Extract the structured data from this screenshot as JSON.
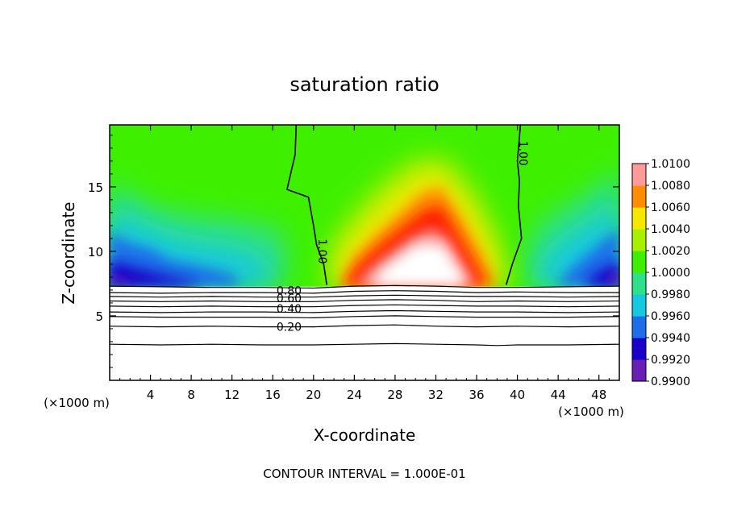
{
  "chart_data": {
    "type": "heatmap",
    "title": "saturation ratio",
    "xlabel": "X-coordinate",
    "ylabel": "Z-coordinate",
    "x_unit_left": "(×1000 m)",
    "x_unit_right": "(×1000 m)",
    "xlim": [
      0,
      50
    ],
    "ylim": [
      0,
      19.8
    ],
    "xticks": [
      4,
      8,
      12,
      16,
      20,
      24,
      28,
      32,
      36,
      40,
      44,
      48
    ],
    "xtick_labels": [
      "4",
      "8",
      "12",
      "16",
      "20",
      "24",
      "28",
      "32",
      "36",
      "40",
      "44",
      "48"
    ],
    "yticks": [
      5,
      10,
      15
    ],
    "ytick_labels": [
      "5",
      "10",
      "15"
    ],
    "footer": "CONTOUR INTERVAL = 1.000E-01",
    "colorbar": {
      "levels": [
        0.99,
        0.992,
        0.994,
        0.996,
        0.998,
        1.0,
        1.002,
        1.004,
        1.006,
        1.008,
        1.01
      ],
      "labels": [
        "0.9900",
        "0.9920",
        "0.9940",
        "0.9960",
        "0.9980",
        "1.0000",
        "1.0020",
        "1.0040",
        "1.0060",
        "1.0080",
        "1.0100"
      ],
      "colors": [
        "#6a1fb4",
        "#1a00c8",
        "#1e6ee8",
        "#16c8e0",
        "#2ee08a",
        "#3ef000",
        "#a8f000",
        "#f5e800",
        "#ff8c00",
        "#ff1a00",
        "#ff9a9a"
      ]
    },
    "contour_labels": [
      {
        "text": "1.00",
        "x": 20.8,
        "z": 10.0,
        "rotate": 90
      },
      {
        "text": "1.00",
        "x": 40.5,
        "z": 17.6,
        "rotate": 90
      },
      {
        "text": "0.80",
        "x": 17.6,
        "z": 6.9,
        "rotate": 0
      },
      {
        "text": "0.60",
        "x": 17.6,
        "z": 6.3,
        "rotate": 0
      },
      {
        "text": "0.40",
        "x": 17.6,
        "z": 5.5,
        "rotate": 0
      },
      {
        "text": "0.20",
        "x": 17.6,
        "z": 4.1,
        "rotate": 0
      }
    ],
    "contour_lines": [
      {
        "level": "0.90",
        "points": [
          [
            0,
            7.3
          ],
          [
            5,
            7.25
          ],
          [
            10,
            7.2
          ],
          [
            15,
            7.2
          ],
          [
            20,
            7.15
          ],
          [
            24,
            7.3
          ],
          [
            28,
            7.35
          ],
          [
            32,
            7.3
          ],
          [
            36,
            7.2
          ],
          [
            40,
            7.2
          ],
          [
            45,
            7.25
          ],
          [
            50,
            7.3
          ]
        ]
      },
      {
        "level": "0.80",
        "points": [
          [
            0,
            6.8
          ],
          [
            5,
            6.75
          ],
          [
            10,
            6.8
          ],
          [
            15,
            6.8
          ],
          [
            20,
            6.75
          ],
          [
            24,
            6.9
          ],
          [
            28,
            6.95
          ],
          [
            32,
            6.9
          ],
          [
            36,
            6.8
          ],
          [
            40,
            6.85
          ],
          [
            45,
            6.8
          ],
          [
            50,
            6.8
          ]
        ]
      },
      {
        "level": "0.70",
        "points": [
          [
            0,
            6.5
          ],
          [
            5,
            6.45
          ],
          [
            10,
            6.5
          ],
          [
            15,
            6.45
          ],
          [
            20,
            6.45
          ],
          [
            24,
            6.55
          ],
          [
            28,
            6.6
          ],
          [
            32,
            6.55
          ],
          [
            36,
            6.5
          ],
          [
            40,
            6.5
          ],
          [
            45,
            6.45
          ],
          [
            50,
            6.5
          ]
        ]
      },
      {
        "level": "0.60",
        "points": [
          [
            0,
            6.15
          ],
          [
            5,
            6.1
          ],
          [
            10,
            6.15
          ],
          [
            15,
            6.1
          ],
          [
            20,
            6.1
          ],
          [
            24,
            6.2
          ],
          [
            28,
            6.25
          ],
          [
            32,
            6.2
          ],
          [
            36,
            6.1
          ],
          [
            40,
            6.15
          ],
          [
            45,
            6.1
          ],
          [
            50,
            6.15
          ]
        ]
      },
      {
        "level": "0.50",
        "points": [
          [
            0,
            5.75
          ],
          [
            5,
            5.7
          ],
          [
            10,
            5.75
          ],
          [
            15,
            5.7
          ],
          [
            20,
            5.7
          ],
          [
            24,
            5.8
          ],
          [
            28,
            5.85
          ],
          [
            32,
            5.8
          ],
          [
            36,
            5.75
          ],
          [
            40,
            5.75
          ],
          [
            45,
            5.7
          ],
          [
            50,
            5.75
          ]
        ]
      },
      {
        "level": "0.40",
        "points": [
          [
            0,
            5.3
          ],
          [
            5,
            5.25
          ],
          [
            10,
            5.3
          ],
          [
            15,
            5.3
          ],
          [
            20,
            5.25
          ],
          [
            24,
            5.35
          ],
          [
            28,
            5.4
          ],
          [
            32,
            5.35
          ],
          [
            36,
            5.3
          ],
          [
            40,
            5.3
          ],
          [
            45,
            5.25
          ],
          [
            50,
            5.3
          ]
        ]
      },
      {
        "level": "0.30",
        "points": [
          [
            0,
            4.95
          ],
          [
            5,
            4.9
          ],
          [
            10,
            4.9
          ],
          [
            15,
            4.9
          ],
          [
            20,
            4.85
          ],
          [
            24,
            4.95
          ],
          [
            28,
            5.0
          ],
          [
            32,
            4.95
          ],
          [
            36,
            4.9
          ],
          [
            40,
            4.9
          ],
          [
            45,
            4.9
          ],
          [
            50,
            4.95
          ]
        ]
      },
      {
        "level": "0.20",
        "points": [
          [
            0,
            4.2
          ],
          [
            5,
            4.15
          ],
          [
            10,
            4.2
          ],
          [
            15,
            4.15
          ],
          [
            20,
            4.15
          ],
          [
            24,
            4.25
          ],
          [
            28,
            4.3
          ],
          [
            32,
            4.2
          ],
          [
            36,
            4.15
          ],
          [
            40,
            4.2
          ],
          [
            45,
            4.15
          ],
          [
            50,
            4.2
          ]
        ]
      },
      {
        "level": "0.10",
        "points": [
          [
            0,
            2.8
          ],
          [
            5,
            2.75
          ],
          [
            10,
            2.8
          ],
          [
            15,
            2.75
          ],
          [
            20,
            2.75
          ],
          [
            24,
            2.8
          ],
          [
            28,
            2.85
          ],
          [
            32,
            2.8
          ],
          [
            36,
            2.75
          ],
          [
            38,
            2.7
          ],
          [
            40,
            2.75
          ],
          [
            45,
            2.75
          ],
          [
            50,
            2.8
          ]
        ]
      },
      {
        "level": "1.00",
        "points": [
          [
            18.3,
            19.8
          ],
          [
            18.2,
            17.5
          ],
          [
            17.4,
            14.8
          ],
          [
            19.5,
            14.2
          ],
          [
            20.0,
            12.0
          ],
          [
            20.3,
            10.5
          ],
          [
            21.0,
            9.0
          ],
          [
            21.3,
            7.4
          ]
        ]
      },
      {
        "level": "1.00",
        "points": [
          [
            40.3,
            19.8
          ],
          [
            40.0,
            17.0
          ],
          [
            40.2,
            15.5
          ],
          [
            40.1,
            13.5
          ],
          [
            40.4,
            11.0
          ],
          [
            39.5,
            9.0
          ],
          [
            38.9,
            7.4
          ]
        ]
      }
    ],
    "saturated_top_z": 19.8,
    "cloud_base_z": 7.2
  }
}
